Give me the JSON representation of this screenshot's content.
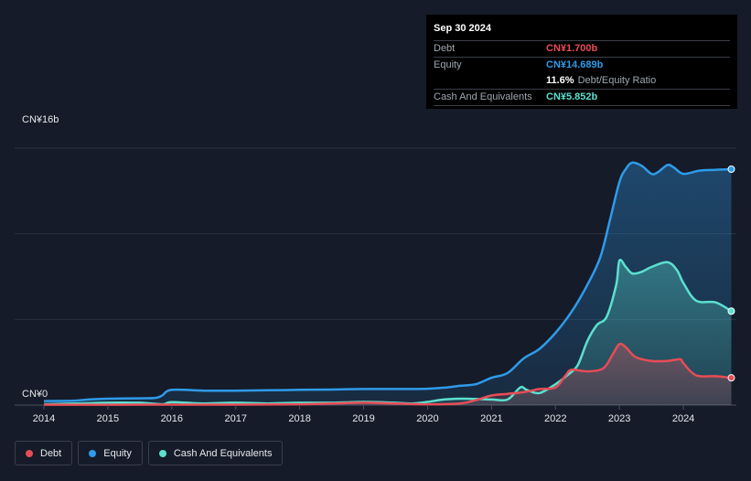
{
  "tooltip": {
    "date": "Sep 30 2024",
    "rows": [
      {
        "label": "Debt",
        "value": "CN¥1.700b",
        "color": "#e84c56"
      },
      {
        "label": "Equity",
        "value": "CN¥14.689b",
        "color": "#2f9bea"
      },
      {
        "label": "",
        "value": "11.6%",
        "sub": "Debt/Equity Ratio",
        "color": "#ffffff"
      },
      {
        "label": "Cash And Equivalents",
        "value": "CN¥5.852b",
        "color": "#5ce0cf"
      }
    ]
  },
  "legend": [
    {
      "label": "Debt",
      "color": "#e84c56"
    },
    {
      "label": "Equity",
      "color": "#2f9bea"
    },
    {
      "label": "Cash And Equivalents",
      "color": "#5ce0cf"
    }
  ],
  "chart_data": {
    "type": "area",
    "y_top_label": "CN¥16b",
    "y_bottom_label": "CN¥0",
    "ylim": [
      0,
      16
    ],
    "xlim": [
      2014.0,
      2024.8
    ],
    "x_ticks": [
      "2014",
      "2015",
      "2016",
      "2017",
      "2018",
      "2019",
      "2020",
      "2021",
      "2022",
      "2023",
      "2024"
    ],
    "grid": true,
    "series": [
      {
        "name": "Equity",
        "color": "#2f9bea",
        "x": [
          2014.0,
          2014.5,
          2014.7,
          2015.0,
          2015.5,
          2015.75,
          2015.85,
          2016.0,
          2016.5,
          2017.0,
          2017.5,
          2018.0,
          2018.5,
          2019.0,
          2019.5,
          2020.0,
          2020.3,
          2020.5,
          2020.75,
          2021.0,
          2021.25,
          2021.5,
          2021.75,
          2022.0,
          2022.25,
          2022.5,
          2022.7,
          2022.85,
          2023.0,
          2023.1,
          2023.2,
          2023.35,
          2023.5,
          2023.6,
          2023.75,
          2023.85,
          2024.0,
          2024.25,
          2024.5,
          2024.75
        ],
        "y": [
          0.25,
          0.28,
          0.35,
          0.4,
          0.42,
          0.45,
          0.6,
          0.95,
          0.9,
          0.9,
          0.92,
          0.95,
          0.97,
          1.0,
          1.0,
          1.02,
          1.1,
          1.2,
          1.3,
          1.7,
          2.0,
          2.9,
          3.5,
          4.5,
          5.8,
          7.5,
          9.2,
          11.5,
          13.9,
          14.7,
          15.1,
          14.9,
          14.4,
          14.5,
          14.95,
          14.8,
          14.4,
          14.6,
          14.65,
          14.69
        ]
      },
      {
        "name": "Cash And Equivalents",
        "color": "#5ce0cf",
        "x": [
          2014.0,
          2014.5,
          2015.0,
          2015.5,
          2015.85,
          2016.0,
          2016.5,
          2017.0,
          2017.5,
          2018.0,
          2018.5,
          2019.0,
          2019.5,
          2019.75,
          2020.0,
          2020.25,
          2020.5,
          2020.75,
          2021.0,
          2021.25,
          2021.45,
          2021.55,
          2021.75,
          2022.0,
          2022.2,
          2022.35,
          2022.5,
          2022.65,
          2022.8,
          2022.95,
          2023.0,
          2023.1,
          2023.2,
          2023.35,
          2023.5,
          2023.75,
          2023.9,
          2024.0,
          2024.2,
          2024.5,
          2024.75
        ],
        "y": [
          0.05,
          0.1,
          0.15,
          0.15,
          0.05,
          0.18,
          0.1,
          0.15,
          0.1,
          0.15,
          0.15,
          0.2,
          0.15,
          0.1,
          0.2,
          0.35,
          0.4,
          0.38,
          0.35,
          0.35,
          1.1,
          0.95,
          0.75,
          1.3,
          1.9,
          2.5,
          4.0,
          5.0,
          5.5,
          7.5,
          9.0,
          8.6,
          8.2,
          8.3,
          8.6,
          8.9,
          8.4,
          7.6,
          6.5,
          6.4,
          5.85
        ]
      },
      {
        "name": "Debt",
        "color": "#e84c56",
        "x": [
          2014.0,
          2015.0,
          2016.0,
          2017.0,
          2018.0,
          2018.5,
          2019.0,
          2019.5,
          2020.0,
          2020.5,
          2020.75,
          2021.0,
          2021.25,
          2021.5,
          2021.75,
          2022.0,
          2022.15,
          2022.25,
          2022.5,
          2022.75,
          2022.9,
          2023.0,
          2023.1,
          2023.25,
          2023.5,
          2023.75,
          2023.95,
          2024.0,
          2024.2,
          2024.5,
          2024.75
        ],
        "y": [
          0.02,
          0.02,
          0.03,
          0.03,
          0.05,
          0.1,
          0.15,
          0.1,
          0.05,
          0.1,
          0.3,
          0.6,
          0.7,
          0.8,
          1.0,
          1.1,
          1.8,
          2.2,
          2.1,
          2.3,
          3.2,
          3.8,
          3.6,
          3.0,
          2.75,
          2.75,
          2.85,
          2.6,
          1.85,
          1.8,
          1.7
        ]
      }
    ]
  }
}
